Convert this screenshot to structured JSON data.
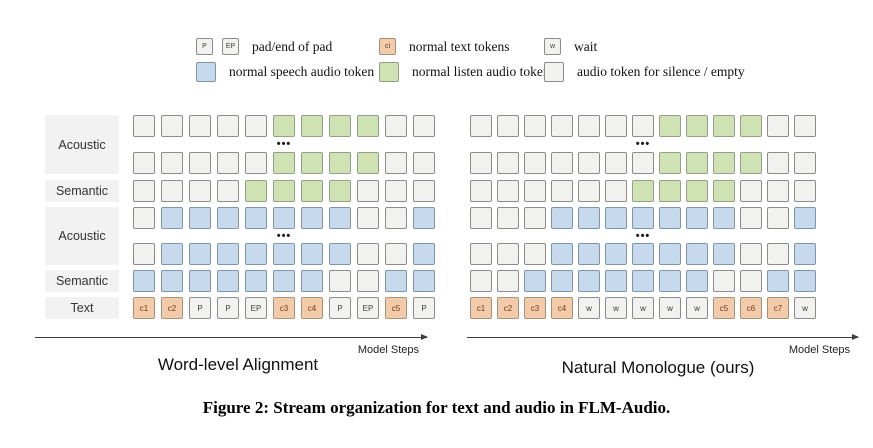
{
  "colors": {
    "empty": {
      "fill": "#f1f1ef",
      "border": "#8c8c8c"
    },
    "green": {
      "fill": "#cee2b3",
      "border": "#94a088"
    },
    "blue": {
      "fill": "#c7d9ec",
      "border": "#7e95ac"
    },
    "orange": {
      "fill": "#f4cba9",
      "border": "#a6927c"
    }
  },
  "ellipsis": "•••",
  "legend": {
    "rows": [
      [
        {
          "tokens": [
            "P",
            "EP"
          ],
          "token_color": "empty",
          "label": "pad/end of pad"
        },
        {
          "tokens": [
            "ci"
          ],
          "token_color": "orange",
          "label": "normal text tokens"
        },
        {
          "tokens": [
            "w"
          ],
          "token_color": "empty",
          "label": "wait"
        }
      ],
      [
        {
          "swatch": "blue",
          "label": "normal speech audio token"
        },
        {
          "swatch": "green",
          "label": "normal listen audio token"
        },
        {
          "swatch": "empty",
          "label": "audio token for silence / empty"
        }
      ]
    ]
  },
  "row_labels": [
    "Acoustic",
    "Semantic",
    "Acoustic",
    "Semantic",
    "Text"
  ],
  "diagrams": [
    {
      "title": "Word-level Alignment",
      "axis_label": "Model Steps",
      "rows": [
        [
          "empty",
          "empty",
          "empty",
          "empty",
          "empty",
          "green",
          "green",
          "green",
          "green",
          "empty",
          "empty"
        ],
        [
          "empty",
          "empty",
          "empty",
          "empty",
          "empty",
          "green",
          "green",
          "green",
          "green",
          "empty",
          "empty"
        ],
        [
          "empty",
          "empty",
          "empty",
          "empty",
          "green",
          "green",
          "green",
          "green",
          "empty",
          "empty",
          "empty"
        ],
        [
          "empty",
          "blue",
          "blue",
          "blue",
          "blue",
          "blue",
          "blue",
          "blue",
          "empty",
          "empty",
          "blue"
        ],
        [
          "empty",
          "blue",
          "blue",
          "blue",
          "blue",
          "blue",
          "blue",
          "blue",
          "empty",
          "empty",
          "blue"
        ],
        [
          "blue",
          "blue",
          "blue",
          "blue",
          "blue",
          "blue",
          "blue",
          "empty",
          "empty",
          "blue",
          "blue"
        ],
        [
          "orange:c1",
          "orange:c2",
          "empty:P",
          "empty:P",
          "empty:EP",
          "orange:c3",
          "orange:c4",
          "empty:P",
          "empty:EP",
          "orange:c5",
          "empty:P"
        ]
      ]
    },
    {
      "title": "Natural Monologue (ours)",
      "axis_label": "Model Steps",
      "rows": [
        [
          "empty",
          "empty",
          "empty",
          "empty",
          "empty",
          "empty",
          "empty",
          "green",
          "green",
          "green",
          "green",
          "empty",
          "empty"
        ],
        [
          "empty",
          "empty",
          "empty",
          "empty",
          "empty",
          "empty",
          "empty",
          "green",
          "green",
          "green",
          "green",
          "empty",
          "empty"
        ],
        [
          "empty",
          "empty",
          "empty",
          "empty",
          "empty",
          "empty",
          "green",
          "green",
          "green",
          "green",
          "empty",
          "empty",
          "empty"
        ],
        [
          "empty",
          "empty",
          "empty",
          "blue",
          "blue",
          "blue",
          "blue",
          "blue",
          "blue",
          "blue",
          "empty",
          "empty",
          "blue"
        ],
        [
          "empty",
          "empty",
          "empty",
          "blue",
          "blue",
          "blue",
          "blue",
          "blue",
          "blue",
          "blue",
          "empty",
          "empty",
          "blue"
        ],
        [
          "empty",
          "empty",
          "blue",
          "blue",
          "blue",
          "blue",
          "blue",
          "blue",
          "blue",
          "empty",
          "empty",
          "blue",
          "blue"
        ],
        [
          "orange:c1",
          "orange:c2",
          "orange:c3",
          "orange:c4",
          "empty:w",
          "empty:w",
          "empty:w",
          "empty:w",
          "empty:w",
          "orange:c5",
          "orange:c6",
          "orange:c7",
          "empty:w"
        ]
      ]
    }
  ],
  "caption": "Figure 2: Stream organization for text and audio in FLM-Audio."
}
